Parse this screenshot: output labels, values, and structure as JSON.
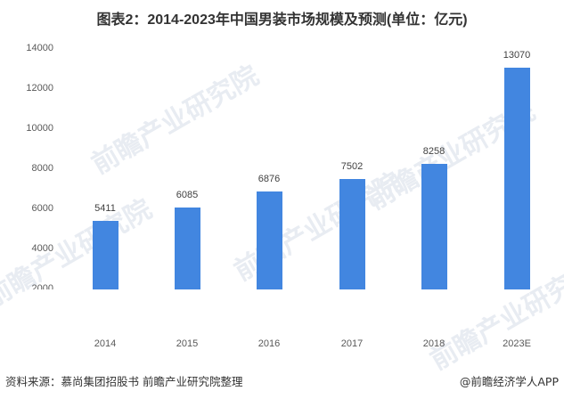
{
  "title": "图表2：2014-2023年中国男装市场规模及预测(单位：亿元)",
  "footer": {
    "source": "资料来源：慕尚集团招股书 前瞻产业研究院整理",
    "credit": "@前瞻经济学人APP"
  },
  "watermark": "前瞻产业研究院",
  "colors": {
    "bar": "#4286E0",
    "text": "#333333",
    "axis_text": "#595959"
  },
  "chart_data": {
    "type": "bar",
    "title": "图表2：2014-2023年中国男装市场规模及预测(单位：亿元)",
    "xlabel": "",
    "ylabel": "",
    "unit": "亿元",
    "categories": [
      "2014",
      "2015",
      "2016",
      "2017",
      "2018",
      "2023E"
    ],
    "values": [
      5411,
      6085,
      6876,
      7502,
      8258,
      13070
    ],
    "yticks": [
      "14000",
      "12000",
      "10000",
      "8000",
      "6000",
      "4000",
      "2000"
    ],
    "ylim": [
      2000,
      14000
    ],
    "grid": false,
    "legend": "none",
    "data_labels": [
      "5411",
      "6085",
      "6876",
      "7502",
      "8258",
      "13070"
    ]
  }
}
